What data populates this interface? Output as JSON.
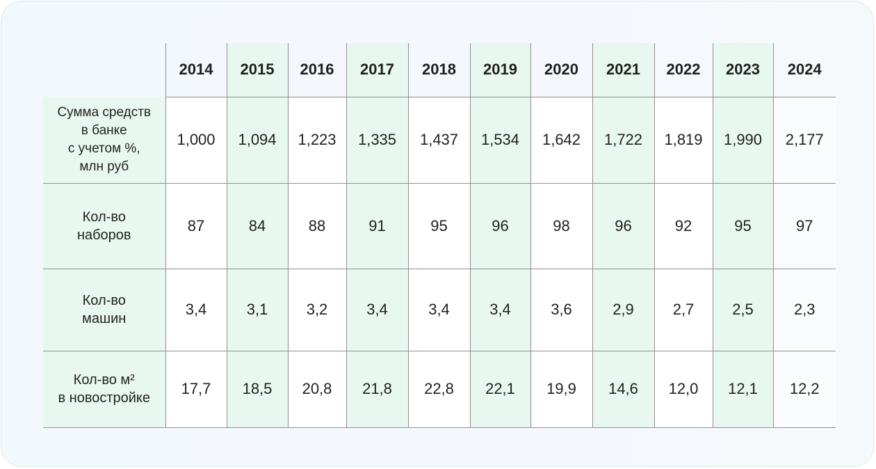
{
  "chart_data": {
    "type": "table",
    "columns": [
      "2014",
      "2015",
      "2016",
      "2017",
      "2018",
      "2019",
      "2020",
      "2021",
      "2022",
      "2023",
      "2024"
    ],
    "rows": [
      {
        "label_lines": [
          "Сумма средств",
          "в банке",
          "с учетом %,",
          "млн руб"
        ],
        "values": [
          "1,000",
          "1,094",
          "1,223",
          "1,335",
          "1,437",
          "1,534",
          "1,642",
          "1,722",
          "1,819",
          "1,990",
          "2,177"
        ]
      },
      {
        "label_lines": [
          "Кол-во",
          "наборов"
        ],
        "values": [
          "87",
          "84",
          "88",
          "91",
          "95",
          "96",
          "98",
          "96",
          "92",
          "95",
          "97"
        ]
      },
      {
        "label_lines": [
          "Кол-во",
          "машин"
        ],
        "values": [
          "3,4",
          "3,1",
          "3,2",
          "3,4",
          "3,4",
          "3,4",
          "3,6",
          "2,9",
          "2,7",
          "2,5",
          "2,3"
        ]
      },
      {
        "label_lines": [
          "Кол-во м²",
          "в новостройке"
        ],
        "values": [
          "17,7",
          "18,5",
          "20,8",
          "21,8",
          "22,8",
          "22,1",
          "19,9",
          "14,6",
          "12,0",
          "12,1",
          "12,2"
        ]
      }
    ],
    "shaded_columns": [
      "2015",
      "2017",
      "2019",
      "2021",
      "2023"
    ],
    "colors": {
      "shade": "#e9f7f1",
      "grid": "#8f8f8f",
      "card_border": "#d7efe7"
    }
  }
}
